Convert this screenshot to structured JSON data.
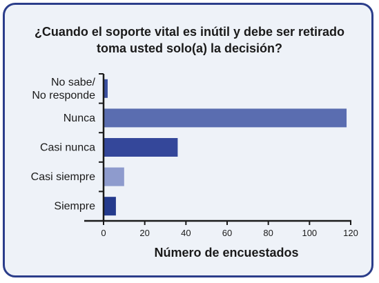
{
  "colors": {
    "frame": "#2b3d8a",
    "background": "#eef2f8",
    "axis": "#1a1a1a"
  },
  "chart_data": {
    "type": "bar",
    "orientation": "horizontal",
    "title": [
      "¿Cuando el soporte vital es inútil y debe ser retirado",
      "toma usted solo(a) la decisión?"
    ],
    "xlabel": "Número de encuestados",
    "ylabel": "",
    "xlim": [
      0,
      120
    ],
    "xticks": [
      0,
      20,
      40,
      60,
      80,
      100,
      120
    ],
    "grid": false,
    "categories": [
      {
        "label": [
          "No sabe/",
          "No responde"
        ],
        "value": 2,
        "color": "#3a4f9e"
      },
      {
        "label": [
          "Nunca"
        ],
        "value": 118,
        "color": "#5a6db0"
      },
      {
        "label": [
          "Casi nunca"
        ],
        "value": 36,
        "color": "#34479a"
      },
      {
        "label": [
          "Casi siempre"
        ],
        "value": 10,
        "color": "#8e9bcd"
      },
      {
        "label": [
          "Siempre"
        ],
        "value": 6,
        "color": "#243a8c"
      }
    ]
  }
}
